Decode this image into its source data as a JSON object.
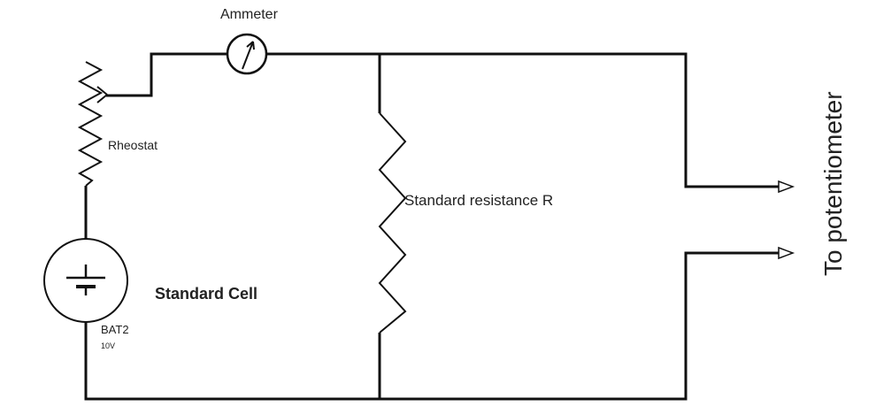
{
  "labels": {
    "ammeter": "Ammeter",
    "rheostat": "Rheostat",
    "standard_resistance": "Standard resistance R",
    "standard_cell": "Standard Cell",
    "battery_name": "BAT2",
    "battery_voltage": "10V",
    "output": "To potentiometer"
  },
  "components": {
    "ammeter": "ammeter-icon",
    "rheostat": "rheostat-icon",
    "resistor": "resistor-icon",
    "battery": "battery-icon",
    "output_arrows": "arrow-right-icon"
  },
  "colors": {
    "wire": "#111111",
    "text": "#222222",
    "background": "#ffffff"
  }
}
